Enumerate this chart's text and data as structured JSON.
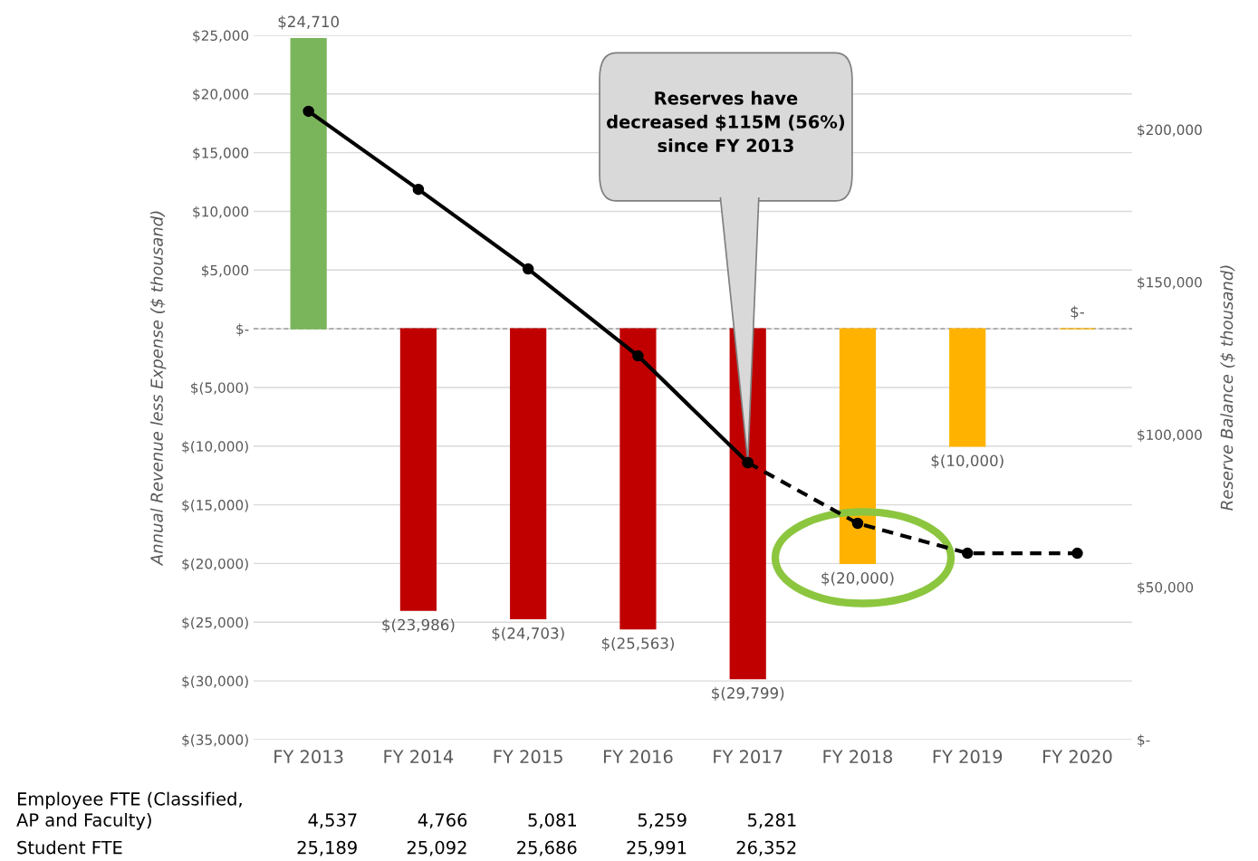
{
  "chart_data": {
    "type": "bar",
    "ylabel": "Annual Revenue less Expense ($ thousand)",
    "y2label": "Reserve Balance ($ thousand)",
    "categories": [
      "FY 2013",
      "FY 2014",
      "FY 2015",
      "FY 2016",
      "FY 2017",
      "FY 2018",
      "FY 2019",
      "FY 2020"
    ],
    "series": [
      {
        "colors": [
          "#7ab55c",
          "#c00000",
          "#c00000",
          "#c00000",
          "#c00000",
          "#ffb300",
          "#ffb300",
          "#ffb300"
        ],
        "values": [
          24710,
          -23986,
          -24703,
          -25563,
          -29799,
          -20000,
          -10000,
          0
        ],
        "value_labels": [
          "$24,710",
          "$(23,986)",
          "$(24,703)",
          "$(25,563)",
          "$(29,799)",
          "$(20,000)",
          "$(10,000)",
          "$-"
        ]
      },
      {
        "type": "line",
        "axis": "y2",
        "color": "#000000",
        "line_style": "solid",
        "marker": "circle",
        "values": [
          206000,
          180400,
          154300,
          125800,
          90800,
          null,
          null,
          null
        ]
      },
      {
        "type": "line",
        "axis": "y2",
        "color": "#000000",
        "line_style": "dashed",
        "marker": "circle",
        "values": [
          null,
          null,
          null,
          null,
          90800,
          70900,
          61100,
          61100
        ]
      }
    ],
    "ylim": [
      -35000,
      25000
    ],
    "yticks": [
      {
        "value": -35000,
        "label": "$(35,000)"
      },
      {
        "value": -30000,
        "label": "$(30,000)"
      },
      {
        "value": -25000,
        "label": "$(25,000)"
      },
      {
        "value": -20000,
        "label": "$(20,000)"
      },
      {
        "value": -15000,
        "label": "$(15,000)"
      },
      {
        "value": -10000,
        "label": "$(10,000)"
      },
      {
        "value": -5000,
        "label": "$(5,000)"
      },
      {
        "value": 0,
        "label": "$-"
      },
      {
        "value": 5000,
        "label": "$5,000"
      },
      {
        "value": 10000,
        "label": "$10,000"
      },
      {
        "value": 15000,
        "label": "$15,000"
      },
      {
        "value": 20000,
        "label": "$20,000"
      },
      {
        "value": 25000,
        "label": "$25,000"
      }
    ],
    "y2lim": [
      0,
      230900
    ],
    "y2ticks": [
      {
        "value": 0,
        "label": "$-"
      },
      {
        "value": 50000,
        "label": "$50,000"
      },
      {
        "value": 100000,
        "label": "$100,000"
      },
      {
        "value": 150000,
        "label": "$150,000"
      },
      {
        "value": 200000,
        "label": "$200,000"
      }
    ],
    "ref_lines": [
      {
        "axis": "y",
        "value": 0,
        "color": "#a6a6a6",
        "line_style": "dashed"
      }
    ],
    "grid": "y",
    "legend": false,
    "annotations": [
      "Reserves have\ndecreased $115M (56%)\nsince FY 2013",
      "Employee FTE (Classified,\nAP and Faculty)",
      "4,537",
      "4,766",
      "5,081",
      "5,259",
      "5,281",
      "Student FTE",
      "25,189",
      "25,092",
      "25,686",
      "25,991",
      "26,352"
    ]
  }
}
